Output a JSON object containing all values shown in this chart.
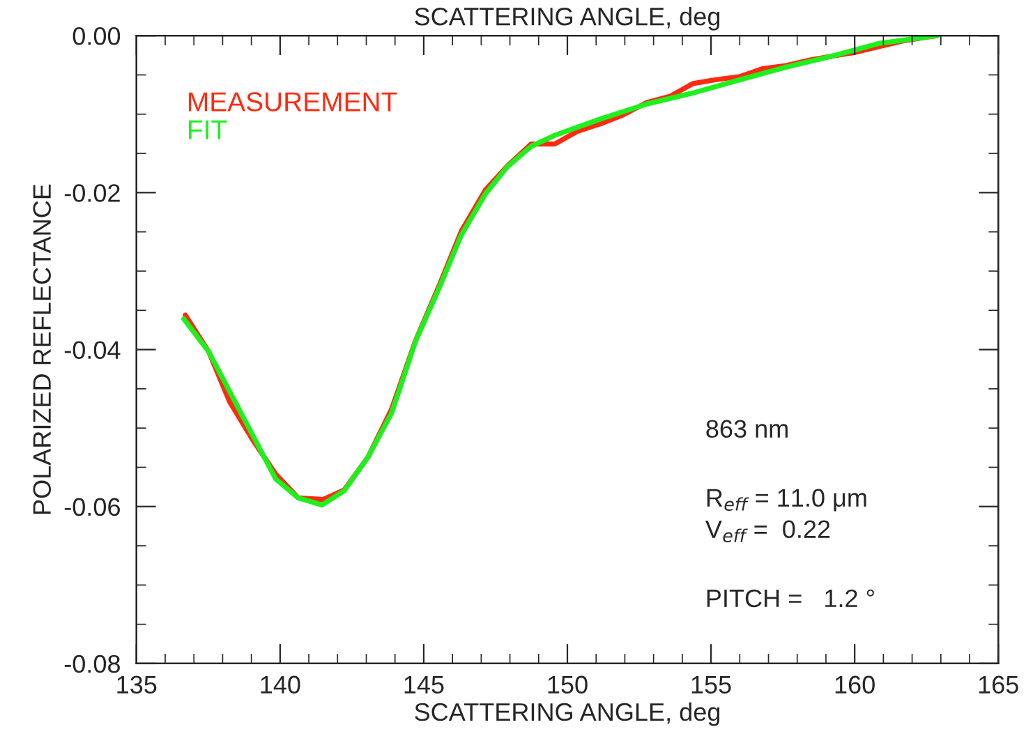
{
  "chart_data": {
    "type": "line",
    "xlabel": "SCATTERING ANGLE, deg",
    "x2label": "SCATTERING ANGLE, deg",
    "ylabel": "POLARIZED REFLECTANCE",
    "xlim": [
      135,
      165
    ],
    "xticks": [
      135,
      140,
      145,
      150,
      155,
      160,
      165
    ],
    "ylim": [
      -0.08,
      0.0
    ],
    "yticks": [
      {
        "value": -0.08,
        "label": "-0.08"
      },
      {
        "value": -0.06,
        "label": "-0.06"
      },
      {
        "value": -0.04,
        "label": "-0.04"
      },
      {
        "value": -0.02,
        "label": "-0.02"
      },
      {
        "value": 0.0,
        "label": "0.00"
      }
    ],
    "grid": false,
    "legend": "top left",
    "marker": "none",
    "line_style": "solid",
    "series": [
      {
        "name": "MEASUREMENT",
        "color": "#ff2a10",
        "x": [
          136.7,
          137.52,
          138.25,
          139.03,
          139.85,
          140.63,
          141.5,
          142.23,
          143.06,
          143.88,
          144.71,
          145.53,
          146.31,
          147.14,
          147.91,
          148.74,
          149.56,
          150.34,
          151.17,
          151.94,
          152.77,
          153.59,
          154.37,
          155.19,
          156.02,
          156.8,
          157.62,
          158.45,
          159.22,
          160.05,
          160.83,
          161.65,
          162.48,
          162.86
        ],
        "values": [
          -0.0356,
          -0.0403,
          -0.0467,
          -0.0514,
          -0.0559,
          -0.0589,
          -0.0591,
          -0.0579,
          -0.0537,
          -0.0476,
          -0.0389,
          -0.0319,
          -0.0249,
          -0.0197,
          -0.0166,
          -0.0138,
          -0.0138,
          -0.0122,
          -0.0112,
          -0.0101,
          -0.0085,
          -0.0077,
          -0.0061,
          -0.0056,
          -0.0052,
          -0.0042,
          -0.0038,
          -0.0031,
          -0.0026,
          -0.0021,
          -0.0014,
          -0.0007,
          -0.0002,
          0.0
        ]
      },
      {
        "name": "FIT",
        "color": "#1ef01e",
        "x": [
          136.65,
          137.52,
          139.85,
          140.63,
          141.46,
          142.23,
          143.06,
          143.88,
          144.71,
          145.53,
          146.31,
          147.14,
          147.91,
          148.74,
          149.56,
          151.17,
          152.77,
          154.37,
          156.02,
          157.62,
          159.22,
          160.83,
          162.86
        ],
        "values": [
          -0.0361,
          -0.0403,
          -0.0565,
          -0.0589,
          -0.0598,
          -0.058,
          -0.0537,
          -0.0481,
          -0.039,
          -0.0322,
          -0.0254,
          -0.0202,
          -0.0167,
          -0.0141,
          -0.0127,
          -0.0106,
          -0.0087,
          -0.0073,
          -0.0056,
          -0.004,
          -0.0026,
          -0.001,
          0.0
        ]
      }
    ],
    "annotations": [
      "863 nm",
      "R$_{eff}$ = 11.0 μm",
      "V$_{eff}$ =  0.22",
      "PITCH =   1.2 °"
    ]
  }
}
